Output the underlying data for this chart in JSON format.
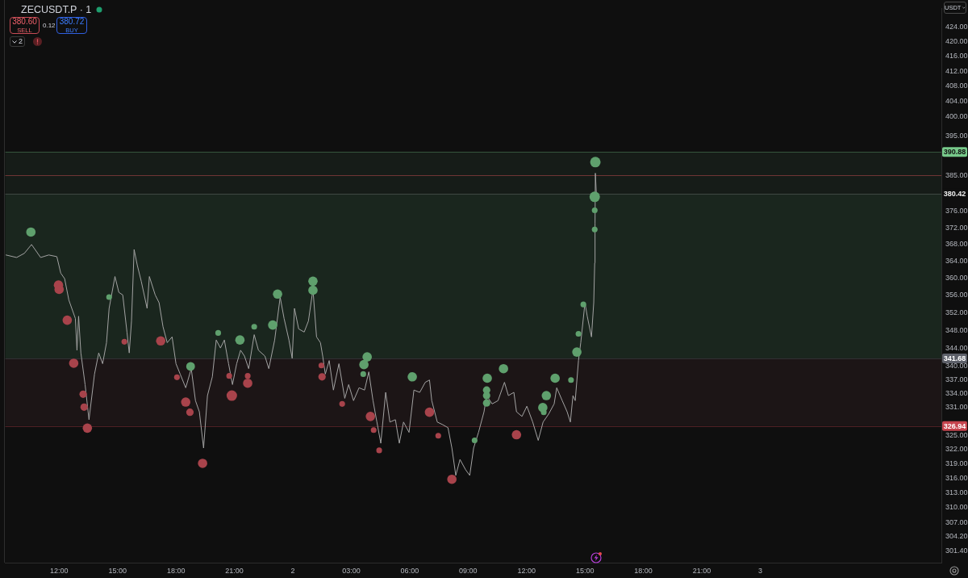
{
  "chart_data": {
    "type": "line",
    "title": "ZECUSDT.P · 1",
    "ylabel": "USDT",
    "annotations": [
      "380.60",
      "SELL",
      "0.12",
      "380.72",
      "BUY",
      "2"
    ],
    "log": true,
    "xlim": [
      "--12-01T09:14",
      "--12-03T09:18"
    ],
    "xticks": [
      {
        "value": "--12-01T12:00",
        "label": "12:00"
      },
      {
        "value": "--12-01T15:00",
        "label": "15:00"
      },
      {
        "value": "--12-01T18:00",
        "label": "18:00"
      },
      {
        "value": "--12-01T21:00",
        "label": "21:00"
      },
      {
        "value": "--12-02T00:00",
        "label": "2"
      },
      {
        "value": "--12-02T03:00",
        "label": "03:00"
      },
      {
        "value": "--12-02T06:00",
        "label": "06:00"
      },
      {
        "value": "--12-02T09:00",
        "label": "09:00"
      },
      {
        "value": "--12-02T12:00",
        "label": "12:00"
      },
      {
        "value": "--12-02T15:00",
        "label": "15:00"
      },
      {
        "value": "--12-02T18:00",
        "label": "18:00"
      },
      {
        "value": "--12-02T21:00",
        "label": "21:00"
      },
      {
        "value": "--12-03T00:00",
        "label": "3"
      }
    ],
    "ylim": [
      299.1,
      429.2
    ],
    "yticks": [
      {
        "value": 424,
        "label": "424.00"
      },
      {
        "value": 420,
        "label": "420.00"
      },
      {
        "value": 416,
        "label": "416.00"
      },
      {
        "value": 412,
        "label": "412.00"
      },
      {
        "value": 408,
        "label": "408.00"
      },
      {
        "value": 404,
        "label": "404.00"
      },
      {
        "value": 400,
        "label": "400.00"
      },
      {
        "value": 395,
        "label": "395.00"
      },
      {
        "value": 385,
        "label": "385.00"
      },
      {
        "value": 376,
        "label": "376.00"
      },
      {
        "value": 372,
        "label": "372.00"
      },
      {
        "value": 368,
        "label": "368.00"
      },
      {
        "value": 364,
        "label": "364.00"
      },
      {
        "value": 360,
        "label": "360.00"
      },
      {
        "value": 356,
        "label": "356.00"
      },
      {
        "value": 352,
        "label": "352.00"
      },
      {
        "value": 348,
        "label": "348.00"
      },
      {
        "value": 344,
        "label": "344.00"
      },
      {
        "value": 340,
        "label": "340.00"
      },
      {
        "value": 337,
        "label": "337.00"
      },
      {
        "value": 334,
        "label": "334.00"
      },
      {
        "value": 331,
        "label": "331.00"
      },
      {
        "value": 325,
        "label": "325.00"
      },
      {
        "value": 322,
        "label": "322.00"
      },
      {
        "value": 319,
        "label": "319.00"
      },
      {
        "value": 316,
        "label": "316.00"
      },
      {
        "value": 313,
        "label": "313.00"
      },
      {
        "value": 310,
        "label": "310.00"
      },
      {
        "value": 307,
        "label": "307.00"
      },
      {
        "value": 304.2,
        "label": "304.20"
      },
      {
        "value": 301.4,
        "label": "301.40"
      }
    ],
    "bands": [
      {
        "axis": "y",
        "from": 380.42,
        "to": 390.88,
        "color": "#161c18"
      },
      {
        "axis": "y",
        "from": 341.68,
        "to": 380.42,
        "color": "#1a261e"
      },
      {
        "axis": "y",
        "from": 326.94,
        "to": 341.68,
        "color": "#1c1516"
      }
    ],
    "ref_lines": [
      {
        "axis": "y",
        "value": 385,
        "color": "#6e3535"
      },
      {
        "axis": "y",
        "value": 390.88,
        "label": "390.88",
        "color": "#77c98a"
      },
      {
        "axis": "y",
        "value": 380.42,
        "label": "380.42"
      },
      {
        "axis": "y",
        "value": 341.68,
        "label": "341.68",
        "color": "#5d6069"
      },
      {
        "axis": "y",
        "value": 326.94,
        "label": "326.94",
        "color": "#c5444e"
      }
    ],
    "series": [
      {
        "color": "#a3a3a3",
        "x": [
          "--12-01T09:16",
          "--12-01T09:49",
          "--12-01T10:13",
          "--12-01T10:35",
          "--12-01T11:03",
          "--12-01T11:28",
          "--12-01T11:53",
          "--12-01T12:05",
          "--12-01T12:17",
          "--12-01T12:30",
          "--12-01T12:50",
          "--12-01T12:55",
          "--12-01T13:00",
          "--12-01T13:07",
          "--12-01T13:20",
          "--12-01T13:32",
          "--12-01T13:49",
          "--12-01T14:02",
          "--12-01T14:14",
          "--12-01T14:26",
          "--12-01T14:34",
          "--12-01T14:52",
          "--12-01T15:04",
          "--12-01T15:16",
          "--12-01T15:29",
          "--12-01T15:36",
          "--12-01T15:43",
          "--12-01T15:51",
          "--12-01T16:01",
          "--12-01T16:13",
          "--12-01T16:31",
          "--12-01T16:38",
          "--12-01T16:56",
          "--12-01T17:08",
          "--12-01T17:20",
          "--12-01T17:33",
          "--12-01T17:48",
          "--12-01T18:00",
          "--12-01T18:13",
          "--12-01T18:30",
          "--12-01T18:47",
          "--12-01T19:00",
          "--12-01T19:12",
          "--12-01T19:25",
          "--12-01T19:37",
          "--12-01T19:52",
          "--12-01T20:04",
          "--12-01T20:17",
          "--12-01T20:29",
          "--12-01T20:42",
          "--12-01T20:54",
          "--12-01T21:07",
          "--12-01T21:19",
          "--12-01T21:31",
          "--12-01T21:44",
          "--12-01T22:01",
          "--12-01T22:14",
          "--12-01T22:34",
          "--12-01T22:46",
          "--12-01T23:04",
          "--12-01T23:21",
          "--12-01T23:33",
          "--12-01T23:48",
          "--12-01T23:58",
          "--12-02T00:05",
          "--12-02T00:18",
          "--12-02T00:35",
          "--12-02T00:48",
          "--12-02T01:02",
          "--12-02T01:13",
          "--12-02T01:25",
          "--12-02T01:32",
          "--12-02T01:40",
          "--12-02T01:52",
          "--12-02T02:05",
          "--12-02T02:22",
          "--12-02T02:40",
          "--12-02T02:52",
          "--12-02T03:07",
          "--12-02T03:24",
          "--12-02T03:41",
          "--12-02T03:54",
          "--12-02T04:07",
          "--12-02T04:19",
          "--12-02T04:31",
          "--12-02T04:46",
          "--12-02T04:59",
          "--12-02T05:16",
          "--12-02T05:28",
          "--12-02T05:41",
          "--12-02T05:58",
          "--12-02T06:13",
          "--12-02T06:31",
          "--12-02T06:48",
          "--12-02T07:01",
          "--12-02T07:08",
          "--12-02T07:25",
          "--12-02T07:40",
          "--12-02T07:58",
          "--12-02T08:10",
          "--12-02T08:22",
          "--12-02T08:35",
          "--12-02T08:52",
          "--12-02T09:05",
          "--12-02T09:17",
          "--12-02T09:32",
          "--12-02T09:49",
          "--12-02T09:57",
          "--12-02T10:14",
          "--12-02T10:32",
          "--12-02T10:52",
          "--12-02T11:04",
          "--12-02T11:21",
          "--12-02T11:29",
          "--12-02T11:46",
          "--12-02T12:01",
          "--12-02T12:19",
          "--12-02T12:36",
          "--12-02T12:51",
          "--12-02T13:08",
          "--12-02T13:25",
          "--12-02T13:33",
          "--12-02T13:50",
          "--12-02T14:05",
          "--12-02T14:15",
          "--12-02T14:23",
          "--12-02T14:30",
          "--12-02T14:40",
          "--12-02T14:47",
          "--12-02T15:00",
          "--12-02T15:07",
          "--12-02T15:20",
          "--12-02T15:27",
          "--12-02T15:30",
          "--12-02T15:31",
          "--12-02T15:32",
          "--12-02T15:35"
        ],
        "values": [
          365.5,
          364.9,
          365.9,
          368.0,
          364.9,
          365.5,
          365.1,
          361.2,
          359.9,
          354.9,
          350.7,
          343.5,
          351.2,
          342.9,
          335.9,
          328.3,
          338.2,
          342.9,
          340.5,
          345.2,
          353.0,
          360.4,
          356.7,
          356.1,
          347.6,
          342.9,
          350.1,
          366.8,
          363.0,
          359.3,
          353.0,
          360.4,
          356.1,
          354.3,
          348.8,
          345.2,
          346.5,
          340.5,
          338.2,
          335.2,
          339.4,
          332.4,
          330.0,
          322.3,
          333.5,
          337.6,
          345.8,
          344.0,
          345.8,
          340.5,
          335.9,
          340.5,
          343.5,
          342.2,
          339.4,
          347.0,
          343.5,
          342.2,
          339.4,
          345.8,
          355.6,
          350.7,
          345.8,
          341.7,
          353.0,
          348.3,
          347.6,
          350.1,
          357.4,
          346.5,
          345.2,
          342.2,
          338.2,
          341.2,
          334.7,
          340.5,
          332.9,
          335.9,
          332.4,
          335.2,
          334.7,
          338.7,
          332.4,
          327.8,
          323.3,
          334.2,
          327.8,
          328.3,
          323.3,
          327.8,
          325.6,
          334.7,
          334.2,
          336.4,
          336.9,
          332.4,
          327.8,
          327.3,
          326.6,
          322.3,
          316.6,
          319.9,
          317.8,
          316.6,
          322.3,
          325.6,
          330.0,
          333.5,
          331.7,
          332.4,
          336.4,
          333.5,
          334.2,
          330.0,
          329.0,
          331.2,
          327.8,
          323.9,
          327.8,
          329.5,
          331.7,
          335.2,
          332.4,
          330.0,
          327.8,
          333.5,
          332.4,
          341.2,
          345.2,
          354.3,
          351.2,
          346.5,
          354.3,
          363.6,
          373.2,
          385.5,
          380.4
        ]
      },
      {
        "type": "bubble",
        "color": "#5fa06d",
        "x": [
          "--12-01T10:33",
          "--12-01T14:34",
          "--12-01T18:45",
          "--12-01T20:10",
          "--12-01T21:17",
          "--12-01T22:01",
          "--12-01T22:58",
          "--12-01T23:13",
          "--12-02T01:02",
          "--12-02T01:02",
          "--12-02T03:37",
          "--12-02T03:39",
          "--12-02T03:49",
          "--12-02T06:08",
          "--12-02T09:20",
          "--12-02T09:57",
          "--12-02T09:57",
          "--12-02T09:57",
          "--12-02T09:59",
          "--12-02T10:49",
          "--12-02T12:50",
          "--12-02T12:53",
          "--12-02T13:01",
          "--12-02T13:28",
          "--12-02T14:17",
          "--12-02T14:35",
          "--12-02T14:40",
          "--12-02T14:55",
          "--12-02T15:30",
          "--12-02T15:30",
          "--12-02T15:30",
          "--12-02T15:32"
        ],
        "values": [
          371.0,
          355.6,
          339.9,
          347.4,
          345.8,
          348.8,
          349.2,
          356.3,
          359.3,
          357.2,
          338.2,
          340.3,
          342.0,
          337.6,
          323.9,
          331.9,
          333.5,
          334.7,
          337.3,
          339.4,
          330.9,
          329.9,
          333.5,
          337.3,
          336.9,
          343.1,
          347.2,
          353.9,
          371.6,
          376.3,
          379.6,
          388.3
        ],
        "sizes": [
          0.8,
          0.3,
          0.7,
          0.3,
          0.8,
          0.3,
          0.8,
          0.8,
          0.8,
          0.8,
          0.3,
          0.8,
          0.8,
          0.8,
          0.3,
          0.5,
          0.5,
          0.5,
          0.8,
          0.8,
          0.8,
          0.3,
          0.8,
          0.8,
          0.3,
          0.8,
          0.3,
          0.3,
          0.3,
          0.3,
          1,
          1
        ]
      },
      {
        "type": "bubble",
        "color": "#a8434b",
        "x": [
          "--12-01T11:58",
          "--12-01T12:00",
          "--12-01T12:25",
          "--12-01T12:45",
          "--12-01T13:14",
          "--12-01T13:17",
          "--12-01T13:27",
          "--12-01T15:21",
          "--12-01T17:13",
          "--12-01T18:03",
          "--12-01T18:30",
          "--12-01T18:43",
          "--12-01T19:22",
          "--12-01T20:44",
          "--12-01T20:52",
          "--12-01T21:41",
          "--12-01T21:41",
          "--12-02T01:28",
          "--12-02T01:30",
          "--12-02T02:32",
          "--12-02T03:59",
          "--12-02T04:09",
          "--12-02T04:26",
          "--12-02T07:01",
          "--12-02T07:28",
          "--12-02T08:10",
          "--12-02T11:29"
        ],
        "values": [
          358.4,
          357.4,
          350.3,
          340.6,
          333.8,
          331.0,
          326.5,
          345.4,
          345.6,
          337.5,
          332.1,
          329.9,
          319.1,
          337.8,
          333.5,
          337.8,
          336.2,
          340.1,
          337.6,
          331.7,
          329.0,
          326.1,
          321.8,
          329.9,
          324.9,
          315.8,
          325.1
        ],
        "sizes": [
          0.8,
          0.8,
          0.8,
          0.8,
          0.5,
          0.5,
          0.8,
          0.3,
          0.8,
          0.3,
          0.8,
          0.5,
          0.8,
          0.3,
          1,
          0.3,
          0.8,
          0.3,
          0.5,
          0.3,
          0.8,
          0.3,
          0.3,
          0.8,
          0.3,
          0.8,
          0.8
        ]
      }
    ]
  }
}
